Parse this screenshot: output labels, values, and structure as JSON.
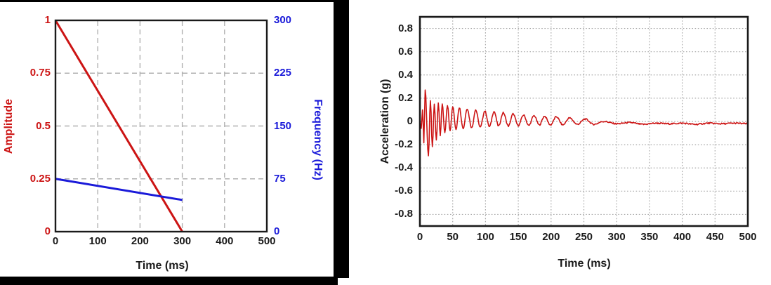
{
  "colors": {
    "red": "#cc1414",
    "blue": "#1a1ad9",
    "black_text": "#1a1a1a",
    "grid_gray_dashed": "#b0b0b0",
    "grid_gray_dotted": "#a8a8a8",
    "frame": "#1a1a1a",
    "panel_border": "#000000",
    "background": "#ffffff"
  },
  "chart_data": [
    {
      "type": "line",
      "title": "",
      "xlabel": "Time (ms)",
      "ylabel_left": "Amplitude",
      "ylabel_right": "Frequency (Hz)",
      "xlim": [
        0,
        500
      ],
      "x_ticks": [
        0,
        100,
        200,
        300,
        400,
        500
      ],
      "x_tick_labels": [
        "0",
        "100",
        "200",
        "300",
        "400",
        "500"
      ],
      "ylim_left": [
        0,
        1
      ],
      "y_ticks_left": [
        0,
        0.25,
        0.5,
        0.75,
        1
      ],
      "y_tick_labels_left": [
        "0",
        "0.25",
        "0.5",
        "0.75",
        "1"
      ],
      "ylim_right": [
        0,
        300
      ],
      "y_ticks_right": [
        0,
        75,
        150,
        225,
        300
      ],
      "y_tick_labels_right": [
        "0",
        "75",
        "150",
        "225",
        "300"
      ],
      "grid_on": true,
      "grid_style": "dashed",
      "legend": "none",
      "series": [
        {
          "name": "amplitude",
          "axis": "left",
          "color": "#cc1414",
          "points": [
            [
              0,
              1
            ],
            [
              300,
              0
            ]
          ]
        },
        {
          "name": "frequency",
          "axis": "right",
          "color": "#1a1ad9",
          "points": [
            [
              0,
              75
            ],
            [
              300,
              45
            ]
          ]
        }
      ]
    },
    {
      "type": "line",
      "title": "",
      "xlabel": "Time (ms)",
      "ylabel": "Acceleration (g)",
      "xlim": [
        0,
        500
      ],
      "x_ticks": [
        0,
        50,
        100,
        150,
        200,
        250,
        300,
        350,
        400,
        450,
        500
      ],
      "x_tick_labels": [
        "0",
        "50",
        "100",
        "150",
        "200",
        "250",
        "300",
        "350",
        "400",
        "450",
        "500"
      ],
      "ylim": [
        -0.9,
        0.9
      ],
      "y_ticks": [
        0.8,
        0.6,
        0.4,
        0.2,
        0,
        -0.2,
        -0.4,
        -0.6,
        -0.8
      ],
      "y_tick_labels": [
        "0.8",
        "0.6",
        "0.4",
        "0.2",
        "0",
        "-0.2",
        "-0.4",
        "-0.6",
        "-0.8"
      ],
      "grid_on": true,
      "grid_style": "dotted",
      "legend": "none",
      "series": [
        {
          "name": "acceleration",
          "color": "#cc1414",
          "peak_g": 0.27,
          "min_g": -0.3,
          "settle_time_ms": 250,
          "settled_mean_g": -0.018,
          "noise_g": 0.006,
          "extrema_points": [
            [
              0,
              0
            ],
            [
              2,
              -0.06
            ],
            [
              4,
              0.1
            ],
            [
              6,
              -0.18
            ],
            [
              8,
              0.27
            ],
            [
              13,
              -0.3
            ],
            [
              16,
              0.18
            ],
            [
              19,
              -0.22
            ],
            [
              22,
              0.15
            ],
            [
              25,
              -0.16
            ],
            [
              28,
              0.16
            ],
            [
              31,
              -0.12
            ],
            [
              34,
              0.15
            ],
            [
              38,
              -0.1
            ],
            [
              42,
              0.14
            ],
            [
              46,
              -0.08
            ],
            [
              50,
              0.13
            ],
            [
              55,
              -0.07
            ],
            [
              60,
              0.12
            ],
            [
              66,
              -0.06
            ],
            [
              72,
              0.11
            ],
            [
              79,
              -0.055
            ],
            [
              85,
              0.1
            ],
            [
              92,
              -0.05
            ],
            [
              99,
              0.09
            ],
            [
              106,
              -0.045
            ],
            [
              113,
              0.085
            ],
            [
              120,
              -0.04
            ],
            [
              127,
              0.075
            ],
            [
              135,
              -0.04
            ],
            [
              142,
              0.065
            ],
            [
              150,
              -0.035
            ],
            [
              158,
              0.055
            ],
            [
              166,
              -0.035
            ],
            [
              174,
              0.05
            ],
            [
              182,
              -0.03
            ],
            [
              190,
              0.045
            ],
            [
              199,
              -0.03
            ],
            [
              208,
              0.04
            ],
            [
              218,
              -0.03
            ],
            [
              228,
              0.03
            ],
            [
              240,
              -0.025
            ],
            [
              252,
              0.02
            ],
            [
              265,
              -0.025
            ],
            [
              280,
              0
            ],
            [
              300,
              -0.02
            ],
            [
              320,
              -0.01
            ],
            [
              340,
              -0.025
            ],
            [
              360,
              -0.015
            ],
            [
              380,
              -0.02
            ],
            [
              400,
              -0.015
            ],
            [
              420,
              -0.025
            ],
            [
              440,
              -0.015
            ],
            [
              460,
              -0.02
            ],
            [
              480,
              -0.015
            ],
            [
              500,
              -0.02
            ]
          ]
        }
      ]
    }
  ]
}
